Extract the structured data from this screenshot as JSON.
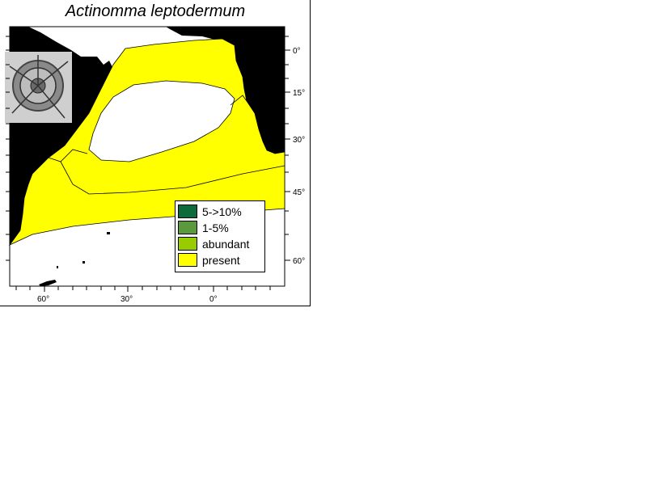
{
  "title": "Actinomma leptodermum",
  "lon_labels": [
    "60°",
    "30°",
    "0°"
  ],
  "lat_labels": [
    "0°",
    "15°",
    "30°",
    "45°",
    "60°"
  ],
  "legend": [
    {
      "label": "5->10%",
      "color": "#0b6b3a"
    },
    {
      "label": "1-5%",
      "color": "#5b9a3c"
    },
    {
      "label": "abundant",
      "color": "#99cc00"
    },
    {
      "label": "present",
      "color": "#ffff00"
    }
  ],
  "colors": {
    "land": "#000000",
    "ocean": "#ffffff",
    "present": "#ffff00"
  },
  "icons": {
    "photo": "radiolarian-micrograph"
  }
}
